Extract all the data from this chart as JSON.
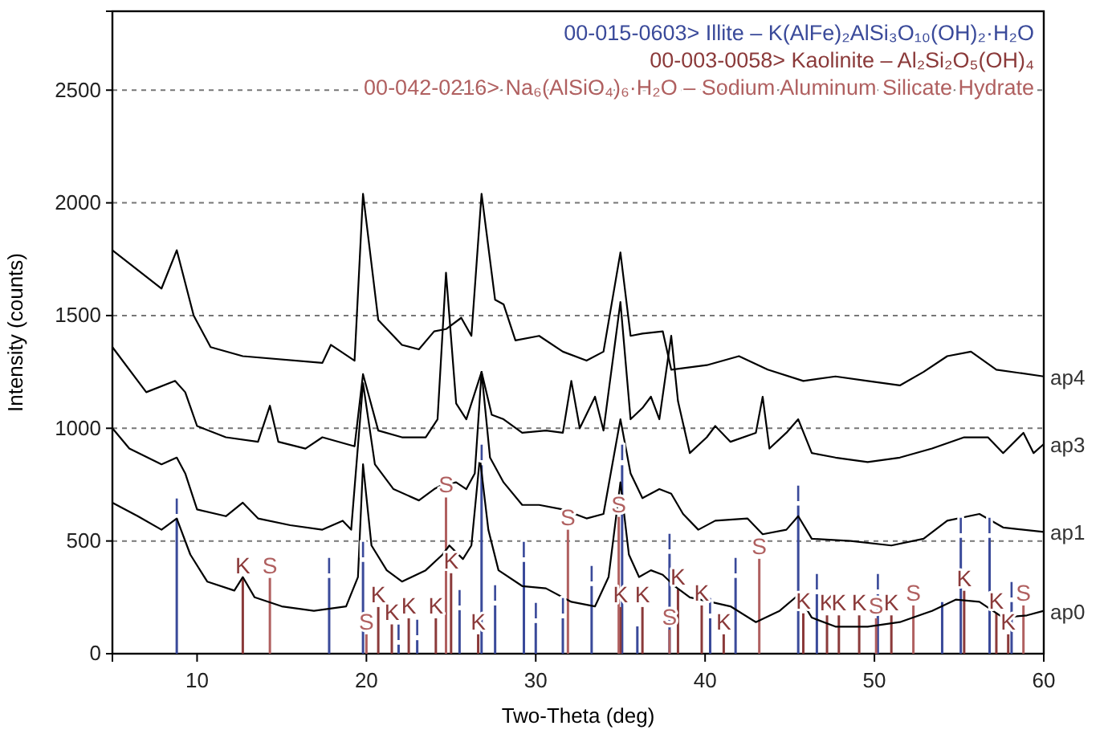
{
  "chart_data": {
    "type": "line",
    "xlabel": "Two-Theta (deg)",
    "ylabel": "Intensity (counts)",
    "xlim": [
      5,
      60
    ],
    "xticks": [
      10,
      20,
      30,
      40,
      50,
      60
    ],
    "ylim": [
      0,
      2850
    ],
    "yticks": [
      0,
      500,
      1000,
      1500,
      2000,
      2500
    ],
    "grid": "y",
    "legend": "top right",
    "series": [
      {
        "name": "ap4",
        "color": "#000000",
        "x": [
          5,
          7.9,
          8.8,
          9.8,
          10.8,
          12.7,
          17.4,
          17.9,
          19.3,
          19.8,
          20.7,
          22.1,
          23.1,
          24.0,
          24.7,
          25.6,
          26.2,
          26.8,
          27.6,
          28.1,
          28.8,
          30.2,
          31.6,
          33.0,
          34.0,
          35.0,
          35.6,
          36.3,
          37.5,
          38.0,
          40.1,
          42.0,
          43.7,
          45.8,
          47.7,
          49.6,
          51.5,
          52.9,
          54.3,
          55.7,
          57.2,
          60
        ],
        "values": [
          1790,
          1620,
          1790,
          1500,
          1360,
          1320,
          1290,
          1370,
          1300,
          2040,
          1480,
          1370,
          1350,
          1430,
          1440,
          1490,
          1410,
          2040,
          1570,
          1550,
          1390,
          1410,
          1340,
          1300,
          1340,
          1780,
          1410,
          1420,
          1430,
          1260,
          1280,
          1320,
          1260,
          1210,
          1230,
          1210,
          1190,
          1250,
          1320,
          1340,
          1260,
          1230
        ]
      },
      {
        "name": "ap3",
        "color": "#000000",
        "x": [
          5,
          7.0,
          8.7,
          9.3,
          10.0,
          11.7,
          13.6,
          14.3,
          14.8,
          16.4,
          17.4,
          19.3,
          19.8,
          20.7,
          22.1,
          23.5,
          24.2,
          24.7,
          25.3,
          25.9,
          26.8,
          27.4,
          28.1,
          29.2,
          30.6,
          31.6,
          32.1,
          32.6,
          33.5,
          34.0,
          35.0,
          35.6,
          36.3,
          36.8,
          37.3,
          38.0,
          38.4,
          39.1,
          40.1,
          40.6,
          41.5,
          43.0,
          43.4,
          43.8,
          44.8,
          45.5,
          46.3,
          47.7,
          49.6,
          51.5,
          53.4,
          55.3,
          56.7,
          57.6,
          58.8,
          59.4,
          60
        ],
        "values": [
          1360,
          1160,
          1210,
          1160,
          1010,
          960,
          940,
          1100,
          940,
          910,
          960,
          920,
          1240,
          990,
          960,
          960,
          1040,
          1690,
          1110,
          1040,
          1250,
          1060,
          1040,
          980,
          990,
          980,
          1210,
          1000,
          1140,
          990,
          1560,
          1040,
          1090,
          1140,
          1040,
          1410,
          1120,
          890,
          960,
          1010,
          940,
          980,
          1140,
          910,
          980,
          1040,
          890,
          870,
          850,
          870,
          910,
          960,
          960,
          890,
          980,
          890,
          930
        ]
      },
      {
        "name": "ap1",
        "color": "#000000",
        "x": [
          5,
          6.0,
          7.9,
          8.8,
          9.3,
          10.0,
          11.7,
          12.7,
          13.6,
          15.5,
          17.4,
          18.6,
          19.1,
          19.8,
          20.5,
          21.6,
          23.1,
          24.0,
          24.5,
          25.3,
          25.9,
          26.4,
          26.8,
          27.3,
          28.1,
          29.2,
          30.2,
          31.6,
          33.0,
          34.0,
          35.0,
          35.6,
          36.3,
          37.3,
          38.0,
          38.7,
          39.6,
          40.6,
          42.5,
          43.4,
          44.8,
          45.5,
          46.3,
          48.6,
          51.0,
          52.9,
          54.3,
          56.2,
          57.6,
          60
        ],
        "values": [
          1000,
          910,
          840,
          870,
          800,
          640,
          610,
          670,
          600,
          570,
          550,
          590,
          550,
          1200,
          840,
          730,
          680,
          730,
          750,
          760,
          730,
          800,
          1250,
          870,
          760,
          660,
          660,
          640,
          600,
          620,
          1040,
          800,
          690,
          730,
          710,
          620,
          550,
          590,
          600,
          530,
          550,
          610,
          510,
          500,
          480,
          510,
          590,
          620,
          560,
          540
        ]
      },
      {
        "name": "ap0",
        "color": "#000000",
        "x": [
          5,
          6.5,
          7.9,
          8.8,
          9.6,
          10.6,
          12.2,
          12.7,
          13.4,
          15.0,
          16.9,
          18.8,
          19.5,
          19.8,
          20.3,
          21.2,
          22.1,
          23.5,
          24.5,
          24.9,
          25.7,
          26.2,
          26.7,
          27.2,
          27.8,
          29.2,
          30.6,
          32.1,
          33.5,
          34.3,
          35.0,
          35.5,
          36.1,
          36.8,
          37.5,
          38.2,
          39.1,
          40.3,
          41.5,
          43.0,
          44.4,
          45.5,
          46.3,
          47.7,
          49.6,
          51.5,
          53.4,
          54.8,
          56.2,
          57.6,
          59.0,
          60
        ],
        "values": [
          670,
          610,
          550,
          600,
          440,
          320,
          280,
          340,
          250,
          210,
          190,
          210,
          340,
          840,
          480,
          370,
          320,
          370,
          440,
          480,
          420,
          480,
          870,
          550,
          370,
          300,
          290,
          230,
          210,
          340,
          760,
          440,
          340,
          370,
          350,
          300,
          250,
          230,
          210,
          140,
          190,
          260,
          160,
          120,
          120,
          140,
          190,
          240,
          230,
          160,
          170,
          190
        ]
      },
      {
        "name": "00-015-0603> Illite – K(AlFe)₂AlSi₃O₁₀(OH)₂·H₂O",
        "type": "bar",
        "color": "#3a4a9a",
        "x": [
          8.8,
          17.8,
          19.8,
          21.9,
          23.0,
          25.5,
          26.8,
          27.6,
          29.3,
          30.0,
          31.6,
          33.3,
          35.1,
          36.0,
          37.9,
          40.3,
          41.8,
          45.5,
          46.6,
          50.2,
          54.0,
          55.1,
          56.8,
          58.1
        ],
        "values": [
          600,
          336,
          407,
          40,
          60,
          193,
          836,
          214,
          407,
          136,
          157,
          300,
          836,
          121,
          443,
          157,
          336,
          657,
          264,
          264,
          229,
          514,
          514,
          229
        ],
        "value_labels": [
          "I",
          "I",
          "I",
          "I",
          "I",
          "I",
          "I",
          "I",
          "I",
          "I",
          "I",
          "I",
          "I",
          null,
          "I",
          "I",
          "I",
          "I",
          "I",
          "I",
          null,
          "I",
          "I",
          "I"
        ]
      },
      {
        "name": "00-003-0058> Kaolinite – Al₂Si₂O₅(OH)₄",
        "type": "bar",
        "color": "#8b3a3a",
        "x": [
          12.7,
          20.7,
          21.5,
          22.5,
          24.1,
          25.0,
          26.6,
          35.0,
          36.3,
          38.4,
          39.8,
          41.1,
          45.8,
          47.2,
          47.9,
          49.1,
          51.0,
          55.3,
          57.2,
          57.9
        ],
        "values": [
          336,
          207,
          130,
          157,
          157,
          357,
          86,
          207,
          207,
          286,
          214,
          86,
          179,
          170,
          170,
          170,
          170,
          279,
          179,
          86
        ],
        "value_labels": [
          "K",
          "K",
          "K",
          "K",
          "K",
          "K",
          "K",
          "K",
          "K",
          "K",
          "K",
          "K",
          "K",
          "K",
          "K",
          "K",
          "K",
          "K",
          "K",
          "K"
        ]
      },
      {
        "name": "00-042-0216> Na₆(AlSiO₄)₆·H₂O – Sodium Aluminum Silicate Hydrate",
        "type": "bar",
        "color": "#b06060",
        "x": [
          14.3,
          20.0,
          24.7,
          31.9,
          34.9,
          37.9,
          43.2,
          50.1,
          52.3,
          58.8
        ],
        "values": [
          336,
          86,
          693,
          550,
          607,
          107,
          421,
          157,
          214,
          214
        ],
        "value_labels": [
          "S",
          "S",
          "S",
          "S",
          "S",
          "S",
          "S",
          "S",
          "S",
          "S"
        ]
      }
    ]
  }
}
